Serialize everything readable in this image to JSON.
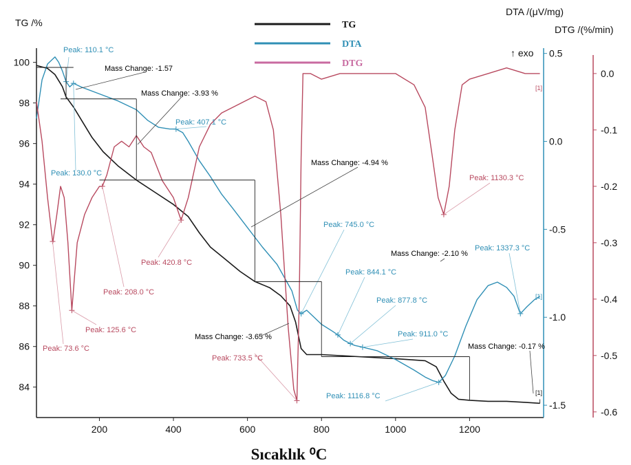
{
  "chart_data": {
    "type": "line",
    "x_axis": {
      "label": "Sıcaklık ⁰C",
      "ticks": [
        200,
        400,
        600,
        800,
        1000,
        1200
      ],
      "range": [
        30,
        1400
      ]
    },
    "y_axes": {
      "tg": {
        "label": "TG /%",
        "ticks": [
          84,
          86,
          88,
          90,
          92,
          94,
          96,
          98,
          100
        ],
        "range": [
          82.5,
          100.7
        ],
        "color": "#1a1a1a"
      },
      "dta": {
        "label": "DTA /(μV/mg)",
        "extra_label": "↑ exo",
        "ticks": [
          -1.5,
          -1.0,
          -0.5,
          0.0,
          0.5
        ],
        "tick_text": [
          "-1.5",
          "-1.0",
          "-0.5",
          "0.0",
          "0.5"
        ],
        "range": [
          -1.57,
          0.53
        ],
        "color": "#2f8fb5"
      },
      "dtg": {
        "label": "DTG /(%/min)",
        "ticks": [
          -0.6,
          -0.5,
          -0.4,
          -0.3,
          -0.2,
          -0.1,
          0.0
        ],
        "tick_text": [
          "-0.6",
          "-0.5",
          "-0.4",
          "-0.3",
          "-0.2",
          "-0.1",
          "0.0"
        ],
        "range": [
          -0.61,
          0.045
        ],
        "color": "#b8495f"
      }
    },
    "legend": {
      "position": "top-center",
      "items": [
        {
          "name": "TG",
          "color": "#1a1a1a"
        },
        {
          "name": "DTA",
          "color": "#2f8fb5"
        },
        {
          "name": "DTG",
          "color": "#c86aa0"
        }
      ]
    },
    "series": [
      {
        "name": "TG",
        "axis": "tg",
        "color": "#1a1a1a",
        "points": [
          [
            30,
            99.85
          ],
          [
            60,
            99.7
          ],
          [
            80,
            99.4
          ],
          [
            100,
            98.8
          ],
          [
            110,
            98.3
          ],
          [
            130,
            97.8
          ],
          [
            150,
            97.2
          ],
          [
            180,
            96.3
          ],
          [
            210,
            95.6
          ],
          [
            250,
            94.9
          ],
          [
            300,
            94.2
          ],
          [
            350,
            93.6
          ],
          [
            400,
            93.0
          ],
          [
            440,
            92.4
          ],
          [
            470,
            91.6
          ],
          [
            500,
            90.9
          ],
          [
            540,
            90.3
          ],
          [
            580,
            89.7
          ],
          [
            620,
            89.2
          ],
          [
            660,
            88.9
          ],
          [
            690,
            88.5
          ],
          [
            715,
            88.0
          ],
          [
            730,
            87.2
          ],
          [
            745,
            85.9
          ],
          [
            760,
            85.6
          ],
          [
            800,
            85.6
          ],
          [
            900,
            85.5
          ],
          [
            1000,
            85.4
          ],
          [
            1080,
            85.3
          ],
          [
            1110,
            85.0
          ],
          [
            1130,
            84.3
          ],
          [
            1150,
            83.7
          ],
          [
            1170,
            83.4
          ],
          [
            1200,
            83.35
          ],
          [
            1250,
            83.3
          ],
          [
            1300,
            83.3
          ],
          [
            1350,
            83.25
          ],
          [
            1390,
            83.2
          ]
        ]
      },
      {
        "name": "DTA",
        "axis": "dta",
        "color": "#2f8fb5",
        "points": [
          [
            30,
            0.13
          ],
          [
            45,
            0.35
          ],
          [
            60,
            0.44
          ],
          [
            80,
            0.48
          ],
          [
            90,
            0.45
          ],
          [
            100,
            0.4
          ],
          [
            110,
            0.34
          ],
          [
            120,
            0.31
          ],
          [
            130,
            0.33
          ],
          [
            150,
            0.31
          ],
          [
            200,
            0.27
          ],
          [
            250,
            0.23
          ],
          [
            300,
            0.18
          ],
          [
            330,
            0.12
          ],
          [
            360,
            0.08
          ],
          [
            390,
            0.07
          ],
          [
            407,
            0.07
          ],
          [
            425,
            0.05
          ],
          [
            440,
            0.0
          ],
          [
            470,
            -0.11
          ],
          [
            500,
            -0.2
          ],
          [
            530,
            -0.3
          ],
          [
            560,
            -0.38
          ],
          [
            600,
            -0.49
          ],
          [
            640,
            -0.6
          ],
          [
            680,
            -0.7
          ],
          [
            720,
            -0.85
          ],
          [
            735,
            -0.96
          ],
          [
            745,
            -0.98
          ],
          [
            760,
            -0.96
          ],
          [
            780,
            -1.0
          ],
          [
            800,
            -1.04
          ],
          [
            830,
            -1.08
          ],
          [
            844,
            -1.1
          ],
          [
            860,
            -1.13
          ],
          [
            878,
            -1.15
          ],
          [
            890,
            -1.16
          ],
          [
            911,
            -1.17
          ],
          [
            950,
            -1.19
          ],
          [
            1000,
            -1.24
          ],
          [
            1050,
            -1.3
          ],
          [
            1080,
            -1.34
          ],
          [
            1100,
            -1.36
          ],
          [
            1117,
            -1.37
          ],
          [
            1135,
            -1.33
          ],
          [
            1160,
            -1.22
          ],
          [
            1190,
            -1.05
          ],
          [
            1220,
            -0.9
          ],
          [
            1250,
            -0.82
          ],
          [
            1275,
            -0.8
          ],
          [
            1300,
            -0.83
          ],
          [
            1320,
            -0.88
          ],
          [
            1337,
            -0.98
          ],
          [
            1355,
            -0.94
          ],
          [
            1375,
            -0.9
          ],
          [
            1390,
            -0.88
          ]
        ]
      },
      {
        "name": "DTG",
        "axis": "dtg",
        "color": "#b8495f",
        "points": [
          [
            30,
            -0.05
          ],
          [
            45,
            -0.12
          ],
          [
            60,
            -0.22
          ],
          [
            74,
            -0.3
          ],
          [
            85,
            -0.25
          ],
          [
            95,
            -0.2
          ],
          [
            105,
            -0.22
          ],
          [
            115,
            -0.3
          ],
          [
            125.6,
            -0.42
          ],
          [
            140,
            -0.3
          ],
          [
            160,
            -0.25
          ],
          [
            180,
            -0.22
          ],
          [
            200,
            -0.2
          ],
          [
            208,
            -0.2
          ],
          [
            220,
            -0.18
          ],
          [
            240,
            -0.13
          ],
          [
            260,
            -0.12
          ],
          [
            280,
            -0.13
          ],
          [
            300,
            -0.11
          ],
          [
            320,
            -0.13
          ],
          [
            340,
            -0.14
          ],
          [
            370,
            -0.19
          ],
          [
            400,
            -0.22
          ],
          [
            420.8,
            -0.26
          ],
          [
            440,
            -0.22
          ],
          [
            470,
            -0.13
          ],
          [
            500,
            -0.09
          ],
          [
            530,
            -0.07
          ],
          [
            560,
            -0.06
          ],
          [
            590,
            -0.05
          ],
          [
            620,
            -0.04
          ],
          [
            650,
            -0.05
          ],
          [
            670,
            -0.1
          ],
          [
            690,
            -0.25
          ],
          [
            710,
            -0.45
          ],
          [
            725,
            -0.56
          ],
          [
            733.5,
            -0.58
          ],
          [
            740,
            -0.4
          ],
          [
            745,
            -0.15
          ],
          [
            750,
            0.0
          ],
          [
            770,
            0.0
          ],
          [
            800,
            -0.01
          ],
          [
            850,
            0.0
          ],
          [
            900,
            0.0
          ],
          [
            950,
            0.0
          ],
          [
            1000,
            0.0
          ],
          [
            1050,
            -0.02
          ],
          [
            1080,
            -0.06
          ],
          [
            1100,
            -0.15
          ],
          [
            1115,
            -0.22
          ],
          [
            1130.3,
            -0.25
          ],
          [
            1145,
            -0.2
          ],
          [
            1160,
            -0.1
          ],
          [
            1180,
            -0.02
          ],
          [
            1200,
            -0.01
          ],
          [
            1250,
            0.0
          ],
          [
            1300,
            0.01
          ],
          [
            1350,
            0.0
          ],
          [
            1390,
            0.0
          ]
        ]
      }
    ],
    "annotations": {
      "dta_peaks": [
        {
          "text": "Peak: 110.1 °C",
          "x": 110.1
        },
        {
          "text": "Peak: 130.0 °C",
          "x": 130.0
        },
        {
          "text": "Peak: 407.1 °C",
          "x": 407.1
        },
        {
          "text": "Peak: 745.0 °C",
          "x": 745.0
        },
        {
          "text": "Peak: 844.1 °C",
          "x": 844.1
        },
        {
          "text": "Peak: 877.8 °C",
          "x": 877.8
        },
        {
          "text": "Peak: 911.0 °C",
          "x": 911.0
        },
        {
          "text": "Peak: 1116.8 °C",
          "x": 1116.8
        },
        {
          "text": "Peak: 1337.3 °C",
          "x": 1337.3
        }
      ],
      "dtg_peaks": [
        {
          "text": "Peak: 73.6 °C",
          "x": 73.6
        },
        {
          "text": "Peak: 125.6 °C",
          "x": 125.6
        },
        {
          "text": "Peak: 208.0 °C",
          "x": 208.0
        },
        {
          "text": "Peak: 420.8 °C",
          "x": 420.8
        },
        {
          "text": "Peak: 733.5 °C",
          "x": 733.5
        },
        {
          "text": "Peak: 1130.3 °C",
          "x": 1130.3
        }
      ],
      "mass_changes": [
        {
          "text": "Mass Change: -1.57"
        },
        {
          "text": "Mass Change: -3.93 %"
        },
        {
          "text": "Mass Change: -4.94 %"
        },
        {
          "text": "Mass Change: -3.65 %"
        },
        {
          "text": "Mass Change: -2.10 %"
        },
        {
          "text": "Mass Change: -0.17 %"
        }
      ],
      "step_marks": [
        "[1]",
        "[1]",
        "[1]"
      ]
    }
  }
}
